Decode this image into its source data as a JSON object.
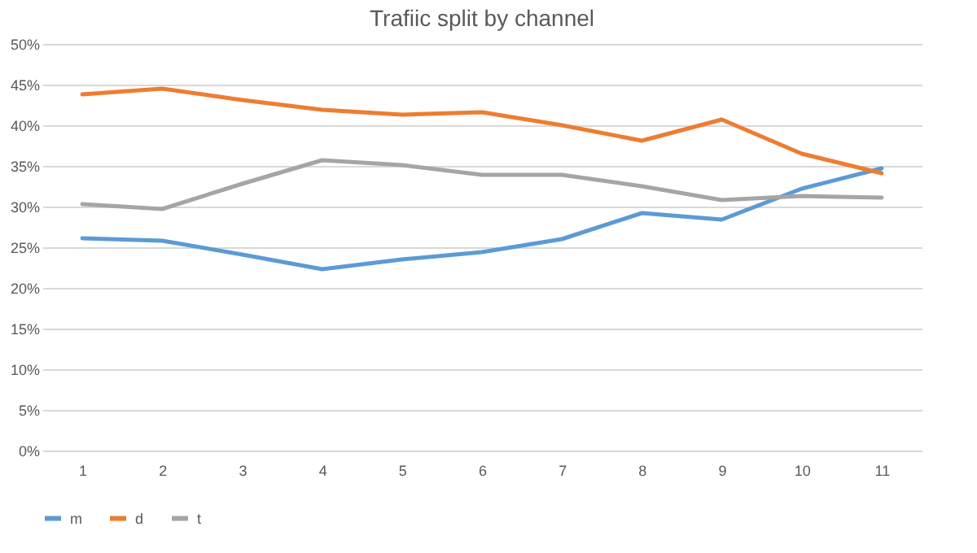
{
  "chart_data": {
    "type": "line",
    "title": "Trafiic split by channel",
    "categories": [
      "1",
      "2",
      "3",
      "4",
      "5",
      "6",
      "7",
      "8",
      "9",
      "10",
      "11"
    ],
    "series": [
      {
        "name": "m",
        "color": "#5b9bd5",
        "values": [
          26.1,
          25.8,
          24.1,
          22.3,
          23.5,
          24.4,
          26.0,
          29.2,
          28.4,
          32.2,
          34.7
        ]
      },
      {
        "name": "d",
        "color": "#ed7d31",
        "values": [
          43.8,
          44.5,
          43.1,
          41.9,
          41.3,
          41.6,
          40.0,
          38.1,
          40.7,
          36.5,
          34.1
        ]
      },
      {
        "name": "t",
        "color": "#a5a5a5",
        "values": [
          30.3,
          29.7,
          32.8,
          35.7,
          35.1,
          33.9,
          33.9,
          32.5,
          30.8,
          31.3,
          31.1
        ]
      }
    ],
    "ylim": [
      0,
      50
    ],
    "yticks": [
      {
        "value": 0,
        "label": "0%"
      },
      {
        "value": 5,
        "label": "5%"
      },
      {
        "value": 10,
        "label": "10%"
      },
      {
        "value": 15,
        "label": "15%"
      },
      {
        "value": 20,
        "label": "20%"
      },
      {
        "value": 25,
        "label": "25%"
      },
      {
        "value": 30,
        "label": "30%"
      },
      {
        "value": 35,
        "label": "35%"
      },
      {
        "value": 40,
        "label": "40%"
      },
      {
        "value": 45,
        "label": "45%"
      },
      {
        "value": 50,
        "label": "50%"
      }
    ],
    "grid": "y",
    "legend": "bottom",
    "marker": "none",
    "line_style": "solid"
  }
}
